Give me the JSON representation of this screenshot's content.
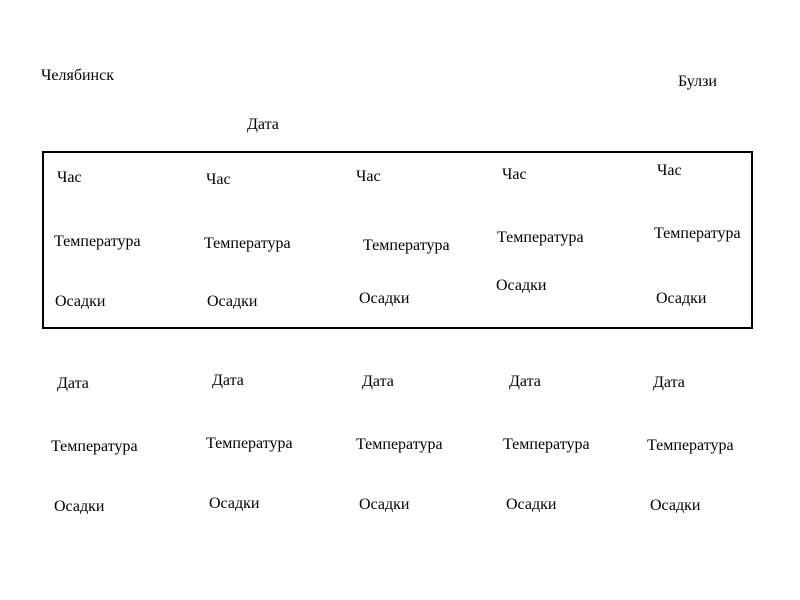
{
  "header": {
    "city_left": "Челябинск",
    "city_right": "Булзи",
    "date_label": "Дата"
  },
  "hourly": [
    {
      "hour": "Час",
      "temperature": "Температура",
      "precipitation": "Осадки"
    },
    {
      "hour": "Час",
      "temperature": "Температура",
      "precipitation": "Осадки"
    },
    {
      "hour": "Час",
      "temperature": "Температура",
      "precipitation": "Осадки"
    },
    {
      "hour": "Час",
      "temperature": "Температура",
      "precipitation": "Осадки"
    },
    {
      "hour": "Час",
      "temperature": "Температура",
      "precipitation": "Осадки"
    }
  ],
  "daily": [
    {
      "date": "Дата",
      "temperature": "Температура",
      "precipitation": "Осадки"
    },
    {
      "date": "Дата",
      "temperature": "Температура",
      "precipitation": "Осадки"
    },
    {
      "date": "Дата",
      "temperature": "Температура",
      "precipitation": "Осадки"
    },
    {
      "date": "Дата",
      "temperature": "Температура",
      "precipitation": "Осадки"
    },
    {
      "date": "Дата",
      "temperature": "Температура",
      "precipitation": "Осадки"
    }
  ]
}
